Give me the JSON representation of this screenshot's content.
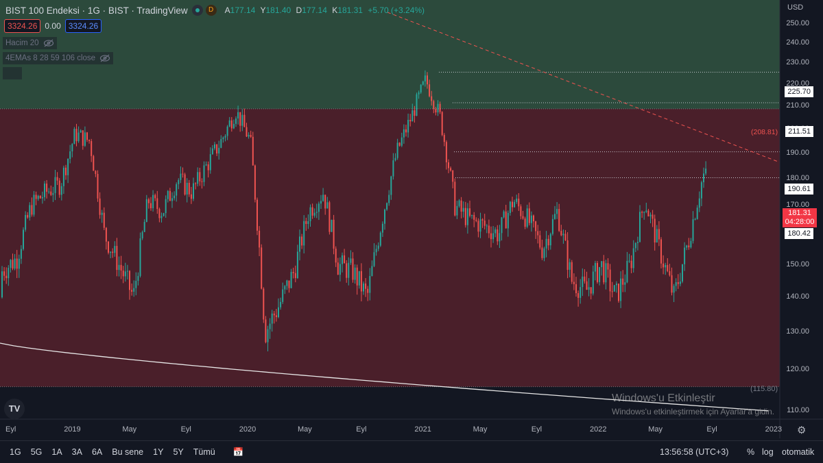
{
  "header": {
    "title": "BIST 100 Endeksi · 1G · BIST · TradingView",
    "d_badge": "D",
    "ohlc": [
      {
        "label": "A",
        "value": "177.14"
      },
      {
        "label": "Y",
        "value": "181.40"
      },
      {
        "label": "D",
        "value": "177.14"
      },
      {
        "label": "K",
        "value": "181.31"
      },
      {
        "label": "",
        "value": "+5.70 (+3.24%)"
      }
    ],
    "bid": "3324.26",
    "spread": "0.00",
    "ask": "3324.26",
    "indicator_volume": "Hacim 20",
    "indicator_ema": "4EMAs 8 28 59 106 close"
  },
  "axis": {
    "currency": "USD",
    "y_ticks": [
      "250.00",
      "240.00",
      "230.00",
      "220.00",
      "210.00",
      "200.00",
      "190.00",
      "180.00",
      "170.00",
      "160.00",
      "150.00",
      "140.00",
      "130.00",
      "120.00",
      "110.00"
    ],
    "x_ticks": [
      "Eyl",
      "2019",
      "May",
      "Eyl",
      "2020",
      "May",
      "Eyl",
      "2021",
      "May",
      "Eyl",
      "2022",
      "May",
      "Eyl",
      "2023"
    ],
    "bottom_right_label": "(115.80)",
    "top_zone_label": "(208.81)"
  },
  "price_labels": {
    "l1": "225.70",
    "l2": "211.51",
    "l3": "190.61",
    "current": "181.31",
    "countdown": "04:28:00",
    "l4": "180.42"
  },
  "watermark": {
    "line1": "Windows'u Etkinleştir",
    "line2": "Windows'u etkinleştirmek için Ayarlar'a gidin."
  },
  "toolbar": {
    "timeframes": [
      "1G",
      "5G",
      "1A",
      "3A",
      "6A",
      "Bu sene",
      "1Y",
      "5Y",
      "Tümü"
    ],
    "time": "13:56:58 (UTC+3)",
    "percent": "%",
    "log": "log",
    "auto": "otomatik",
    "logo": "TV"
  },
  "colors": {
    "green_zone": "#2c4a3c",
    "red_zone": "#4a1f2a",
    "up": "#26a69a",
    "down": "#ef5350"
  },
  "chart_data": {
    "type": "candlestick",
    "symbol": "BIST 100 Endeksi",
    "interval": "1G",
    "currency": "USD",
    "ylim": [
      110,
      255
    ],
    "zones": [
      {
        "from": 208.81,
        "to": 255,
        "color": "green"
      },
      {
        "from": 115.8,
        "to": 208.81,
        "color": "red"
      }
    ],
    "levels": [
      225.7,
      211.51,
      190.61,
      180.42,
      181.31
    ],
    "close_path": [
      [
        "2018-08",
        140
      ],
      [
        "2018-09",
        148
      ],
      [
        "2018-10",
        152
      ],
      [
        "2018-11",
        170
      ],
      [
        "2018-12",
        175
      ],
      [
        "2019-01",
        178
      ],
      [
        "2019-02",
        198
      ],
      [
        "2019-03",
        195
      ],
      [
        "2019-04",
        160
      ],
      [
        "2019-05",
        150
      ],
      [
        "2019-06",
        140
      ],
      [
        "2019-07",
        172
      ],
      [
        "2019-08",
        168
      ],
      [
        "2019-09",
        180
      ],
      [
        "2019-10",
        175
      ],
      [
        "2019-11",
        185
      ],
      [
        "2019-12",
        195
      ],
      [
        "2020-01",
        208
      ],
      [
        "2020-02",
        195
      ],
      [
        "2020-03",
        130
      ],
      [
        "2020-04",
        138
      ],
      [
        "2020-05",
        148
      ],
      [
        "2020-06",
        168
      ],
      [
        "2020-07",
        175
      ],
      [
        "2020-08",
        150
      ],
      [
        "2020-09",
        148
      ],
      [
        "2020-10",
        140
      ],
      [
        "2020-11",
        165
      ],
      [
        "2020-12",
        190
      ],
      [
        "2021-01",
        205
      ],
      [
        "2021-02",
        222
      ],
      [
        "2021-03",
        205
      ],
      [
        "2021-04",
        170
      ],
      [
        "2021-05",
        165
      ],
      [
        "2021-06",
        163
      ],
      [
        "2021-07",
        160
      ],
      [
        "2021-08",
        172
      ],
      [
        "2021-09",
        165
      ],
      [
        "2021-10",
        155
      ],
      [
        "2021-11",
        168
      ],
      [
        "2021-12",
        145
      ],
      [
        "2022-01",
        142
      ],
      [
        "2022-02",
        150
      ],
      [
        "2022-03",
        140
      ],
      [
        "2022-04",
        150
      ],
      [
        "2022-05",
        172
      ],
      [
        "2022-06",
        155
      ],
      [
        "2022-07",
        140
      ],
      [
        "2022-08",
        158
      ],
      [
        "2022-09",
        181.31
      ]
    ]
  }
}
